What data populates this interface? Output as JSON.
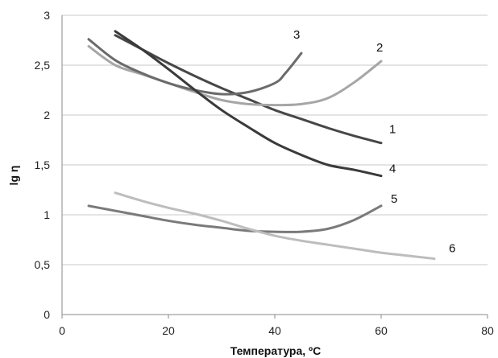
{
  "chart_data": {
    "type": "line",
    "xlabel": "Температура, ºС",
    "ylabel": "lg η",
    "xlim": [
      0,
      80
    ],
    "ylim": [
      0,
      3
    ],
    "xticks": [
      0,
      20,
      40,
      60,
      80
    ],
    "xtick_labels": [
      "0",
      "20",
      "40",
      "60",
      "80"
    ],
    "yticks": [
      0,
      0.5,
      1,
      1.5,
      2,
      2.5,
      3
    ],
    "ytick_labels": [
      "0",
      "0,5",
      "1",
      "1,5",
      "2",
      "2,5",
      "3"
    ],
    "grid": true,
    "legend": "none",
    "series": [
      {
        "name": "1",
        "color": "#474747",
        "x": [
          10,
          15,
          20,
          25,
          30,
          35,
          40,
          45,
          50,
          55,
          60
        ],
        "y": [
          2.8,
          2.66,
          2.52,
          2.39,
          2.27,
          2.16,
          2.05,
          1.96,
          1.87,
          1.79,
          1.72
        ]
      },
      {
        "name": "2",
        "color": "#a6a6a6",
        "x": [
          5,
          10,
          15,
          20,
          25,
          30,
          35,
          40,
          45,
          50,
          55,
          60
        ],
        "y": [
          2.69,
          2.5,
          2.41,
          2.32,
          2.23,
          2.15,
          2.11,
          2.1,
          2.11,
          2.17,
          2.33,
          2.54
        ]
      },
      {
        "name": "3",
        "color": "#6b6b6b",
        "x": [
          5,
          10,
          15,
          20,
          25,
          30,
          35,
          40,
          42,
          45
        ],
        "y": [
          2.76,
          2.55,
          2.42,
          2.32,
          2.25,
          2.21,
          2.23,
          2.32,
          2.42,
          2.62
        ]
      },
      {
        "name": "4",
        "color": "#3a3a3a",
        "x": [
          10,
          15,
          20,
          25,
          30,
          35,
          40,
          45,
          50,
          55,
          60
        ],
        "y": [
          2.84,
          2.66,
          2.46,
          2.25,
          2.05,
          1.88,
          1.72,
          1.6,
          1.5,
          1.45,
          1.39
        ]
      },
      {
        "name": "5",
        "color": "#7a7a7a",
        "x": [
          5,
          10,
          15,
          20,
          25,
          30,
          35,
          40,
          45,
          50,
          55,
          60
        ],
        "y": [
          1.09,
          1.04,
          0.99,
          0.94,
          0.9,
          0.87,
          0.84,
          0.83,
          0.83,
          0.86,
          0.95,
          1.09
        ]
      },
      {
        "name": "6",
        "color": "#bdbdbd",
        "x": [
          10,
          15,
          20,
          25,
          30,
          35,
          40,
          45,
          50,
          55,
          60,
          65,
          70
        ],
        "y": [
          1.22,
          1.14,
          1.07,
          1.01,
          0.94,
          0.86,
          0.79,
          0.74,
          0.7,
          0.66,
          0.62,
          0.59,
          0.56
        ]
      }
    ]
  }
}
